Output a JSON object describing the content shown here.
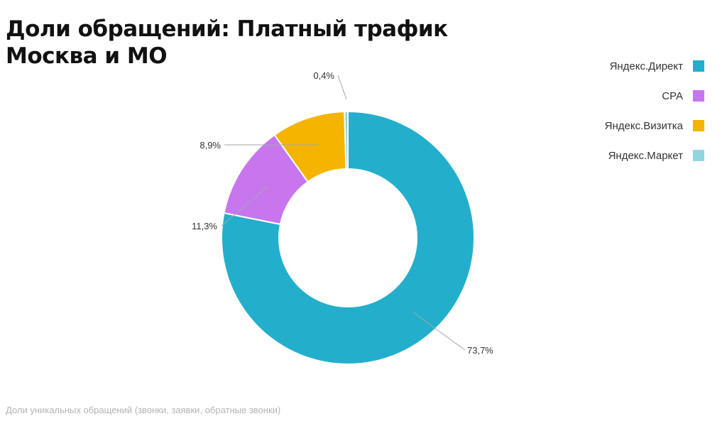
{
  "title": {
    "line1": "Доли обращений: Платный трафик",
    "line2": "Москва и МО"
  },
  "footnote": "Доли уникальных обращений (звонки, заявки, обратные звонки)",
  "chart_data": {
    "type": "pie",
    "donut": true,
    "categories": [
      "Яндекс.Директ",
      "CPA",
      "Яндекс.Визитка",
      "Яндекс.Маркет"
    ],
    "values": [
      73.7,
      11.3,
      8.9,
      0.4
    ],
    "labels": [
      "73,7%",
      "11,3%",
      "8,9%",
      "0,4%"
    ],
    "colors": [
      "#23afcb",
      "#c776ee",
      "#f4b400",
      "#94d4e0"
    ],
    "legend_position": "top-right"
  }
}
